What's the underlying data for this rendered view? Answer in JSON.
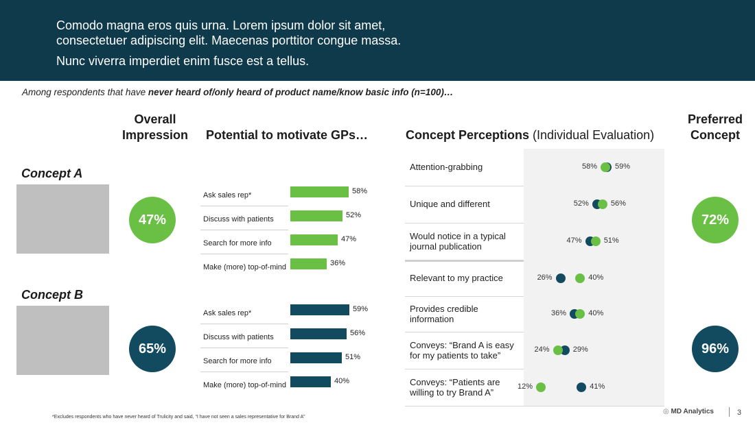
{
  "header": {
    "line1": "Comodo magna eros quis urna. Lorem ipsum dolor sit amet,",
    "line2": "consectetuer adipiscing elit. Maecenas porttitor congue massa.",
    "line3": "Nunc viverra imperdiet enim fusce est a tellus."
  },
  "subtitle": {
    "prefix": "Among respondents that have ",
    "bold": "never heard of/only heard of product name/know basic info (n=100)…"
  },
  "columns": {
    "overall_line1": "Overall",
    "overall_line2": "Impression",
    "potential": "Potential to motivate GPs…",
    "perceptions_bold": "Concept Perceptions",
    "perceptions_normal": " (Individual Evaluation)",
    "preferred_line1": "Preferred",
    "preferred_line2": "Concept"
  },
  "colors": {
    "green": "#6abf45",
    "navy": "#124a5f",
    "header": "#0f3a4b"
  },
  "concepts": [
    {
      "label": "Concept A",
      "overall": "47%",
      "preferred": "72%",
      "color": "#6abf45",
      "bars": [
        {
          "label": "Ask sales rep*",
          "value": 58,
          "text": "58%"
        },
        {
          "label": "Discuss with patients",
          "value": 52,
          "text": "52%"
        },
        {
          "label": "Search for more info",
          "value": 47,
          "text": "47%"
        },
        {
          "label": "Make (more) top-of-mind",
          "value": 36,
          "text": "36%"
        }
      ]
    },
    {
      "label": "Concept B",
      "overall": "65%",
      "preferred": "96%",
      "color": "#124a5f",
      "bars": [
        {
          "label": "Ask sales rep*",
          "value": 59,
          "text": "59%"
        },
        {
          "label": "Discuss with patients",
          "value": 56,
          "text": "56%"
        },
        {
          "label": "Search for more info",
          "value": 51,
          "text": "51%"
        },
        {
          "label": "Make (more) top-of-mind",
          "value": 40,
          "text": "40%"
        }
      ]
    }
  ],
  "perceptions": [
    {
      "label": "Attention-grabbing",
      "a": 58,
      "a_text": "58%",
      "b": 59,
      "b_text": "59%"
    },
    {
      "label": "Unique and different",
      "a": 56,
      "a_text": "56%",
      "b": 52,
      "b_text": "52%"
    },
    {
      "label": "Would notice in a typical journal publication",
      "a": 51,
      "a_text": "51%",
      "b": 47,
      "b_text": "47%"
    },
    {
      "label": "Relevant to my practice",
      "a": 40,
      "a_text": "40%",
      "b": 26,
      "b_text": "26%"
    },
    {
      "label": "Provides credible information",
      "a": 40,
      "a_text": "40%",
      "b": 36,
      "b_text": "36%"
    },
    {
      "label": "Conveys: “Brand A is easy for my patients to take”",
      "a": 24,
      "a_text": "24%",
      "b": 29,
      "b_text": "29%"
    },
    {
      "label": "Conveys: “Patients are willing to try Brand A”",
      "a": 12,
      "a_text": "12%",
      "b": 41,
      "b_text": "41%"
    }
  ],
  "footnote": "*Excludes respondents who have never heard of Trulicity and said, “I have not seen a sales representative for Brand A”",
  "logo": "MD Analytics",
  "page_number": "3"
}
